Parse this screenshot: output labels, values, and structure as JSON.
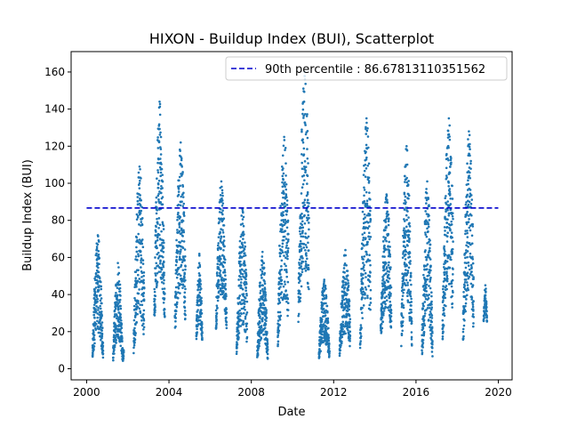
{
  "chart_data": {
    "type": "scatter",
    "title": "HIXON - Buildup Index (BUI), Scatterplot",
    "xlabel": "Date",
    "ylabel": "Buildup Index (BUI)",
    "xlim": [
      "1999-04-01",
      "2020-09-01"
    ],
    "ylim": [
      -6,
      171
    ],
    "x_ticks": [
      "2000",
      "2004",
      "2008",
      "2012",
      "2016",
      "2020"
    ],
    "y_ticks": [
      0,
      20,
      40,
      60,
      80,
      100,
      120,
      140,
      160
    ],
    "series_color": "#1f77b4",
    "reference_line": {
      "label": "90th percentile : 86.67813110351562",
      "value": 86.67813110351562,
      "x_range": [
        "2000-01-01",
        "2019-12-31"
      ],
      "color": "#0000cc",
      "style": "dashed"
    },
    "legend_placement": "top-right",
    "grid": false,
    "seasons": [
      {
        "start": "2000-04-15",
        "end": "2000-10-20",
        "min": 2,
        "max": 72,
        "peak": 0.5
      },
      {
        "start": "2001-04-15",
        "end": "2001-10-20",
        "min": 2,
        "max": 57,
        "peak": 0.45
      },
      {
        "start": "2002-04-15",
        "end": "2002-10-20",
        "min": 3,
        "max": 109,
        "peak": 0.55
      },
      {
        "start": "2003-04-15",
        "end": "2003-10-20",
        "min": 20,
        "max": 144,
        "peak": 0.5
      },
      {
        "start": "2004-04-15",
        "end": "2004-10-20",
        "min": 14,
        "max": 122,
        "peak": 0.55
      },
      {
        "start": "2005-05-01",
        "end": "2005-08-15",
        "min": 12,
        "max": 62,
        "peak": 0.5
      },
      {
        "start": "2006-04-15",
        "end": "2006-10-20",
        "min": 18,
        "max": 101,
        "peak": 0.5
      },
      {
        "start": "2007-04-15",
        "end": "2007-10-20",
        "min": 3,
        "max": 86,
        "peak": 0.55
      },
      {
        "start": "2008-04-15",
        "end": "2008-10-20",
        "min": 2,
        "max": 63,
        "peak": 0.5
      },
      {
        "start": "2009-04-15",
        "end": "2009-10-20",
        "min": 7,
        "max": 125,
        "peak": 0.6
      },
      {
        "start": "2010-04-15",
        "end": "2010-10-20",
        "min": 18,
        "max": 160,
        "peak": 0.6
      },
      {
        "start": "2011-04-15",
        "end": "2011-10-20",
        "min": 3,
        "max": 48,
        "peak": 0.5
      },
      {
        "start": "2012-04-15",
        "end": "2012-10-20",
        "min": 4,
        "max": 64,
        "peak": 0.55
      },
      {
        "start": "2013-04-15",
        "end": "2013-10-20",
        "min": 5,
        "max": 135,
        "peak": 0.6
      },
      {
        "start": "2014-04-15",
        "end": "2014-10-20",
        "min": 12,
        "max": 94,
        "peak": 0.55
      },
      {
        "start": "2015-04-15",
        "end": "2015-10-20",
        "min": 8,
        "max": 120,
        "peak": 0.5
      },
      {
        "start": "2016-04-15",
        "end": "2016-10-20",
        "min": 2,
        "max": 101,
        "peak": 0.5
      },
      {
        "start": "2017-04-15",
        "end": "2017-10-20",
        "min": 10,
        "max": 135,
        "peak": 0.6
      },
      {
        "start": "2018-04-15",
        "end": "2018-10-20",
        "min": 8,
        "max": 128,
        "peak": 0.55
      },
      {
        "start": "2019-04-15",
        "end": "2019-06-15",
        "min": 24,
        "max": 45,
        "peak": 0.5
      }
    ]
  }
}
